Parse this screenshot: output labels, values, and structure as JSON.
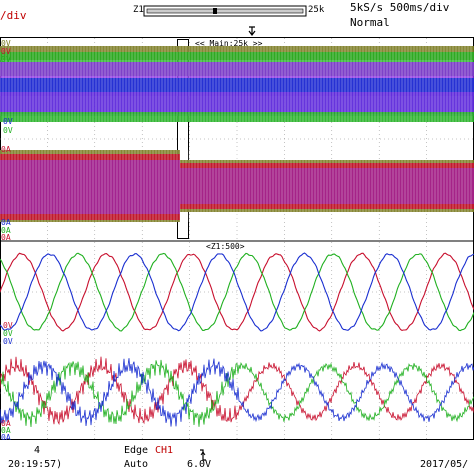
{
  "header": {
    "vdiv": "/div",
    "zoom_left": "Z1",
    "zoom_right": "25k",
    "sample_rate": "5kS/s 500ms/div",
    "mode": "Normal"
  },
  "trigger_marker": "T",
  "upper_zoom_label": "<< Main:25k >>",
  "lower_zoom_label": "<Z1:500>",
  "channel_labels": {
    "p1_top": "0V",
    "p1_a": "0V",
    "p1_b": "0V",
    "p1_c": "0V",
    "p1_d": "0V",
    "p2_top": "0A",
    "p2_a": "0A",
    "p2_b": "0A",
    "p2_c": "0A",
    "p3_a": "0V",
    "p3_b": "0V",
    "p3_c": "0V",
    "p4_a": "0A",
    "p4_b": "0A",
    "p4_c": "0A"
  },
  "footer": {
    "count": "4",
    "time": "20:19:57)",
    "trigger_type": "Edge",
    "trigger_source": "CH1",
    "trigger_mode": "Auto",
    "edge_icon": "rising-edge-icon",
    "trigger_level": "6.0V",
    "date": "2017/05/"
  },
  "colors": {
    "red": "#c8102e",
    "green": "#20b020",
    "blue": "#1a2fd0",
    "purple": "#8a2be2",
    "olive": "#7a7a20"
  }
}
